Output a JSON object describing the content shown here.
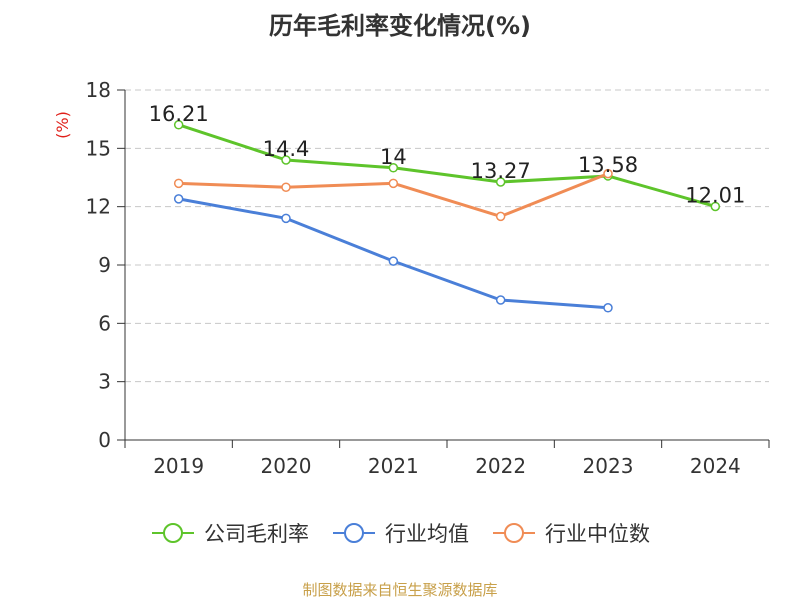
{
  "chart_data": {
    "type": "line",
    "title": "历年毛利率变化情况(%)",
    "ylabel": "(%)",
    "xlabel": "",
    "categories": [
      "2019",
      "2020",
      "2021",
      "2022",
      "2023",
      "2024"
    ],
    "ylim": [
      0,
      18
    ],
    "yticks": [
      0,
      3,
      6,
      9,
      12,
      15,
      18
    ],
    "grid": true,
    "legend_position": "bottom",
    "series": [
      {
        "name": "公司毛利率",
        "color": "#5ec42b",
        "values": [
          16.21,
          14.4,
          14,
          13.27,
          13.58,
          12.01
        ],
        "labels": [
          "16.21",
          "14.4",
          "14",
          "13.27",
          "13.58",
          "12.01"
        ]
      },
      {
        "name": "行业均值",
        "color": "#4a7fd8",
        "values": [
          12.4,
          11.4,
          9.2,
          7.2,
          6.8,
          null
        ]
      },
      {
        "name": "行业中位数",
        "color": "#f08c55",
        "values": [
          13.2,
          13.0,
          13.2,
          11.5,
          13.7,
          null
        ]
      }
    ]
  },
  "source": "制图数据来自恒生聚源数据库"
}
